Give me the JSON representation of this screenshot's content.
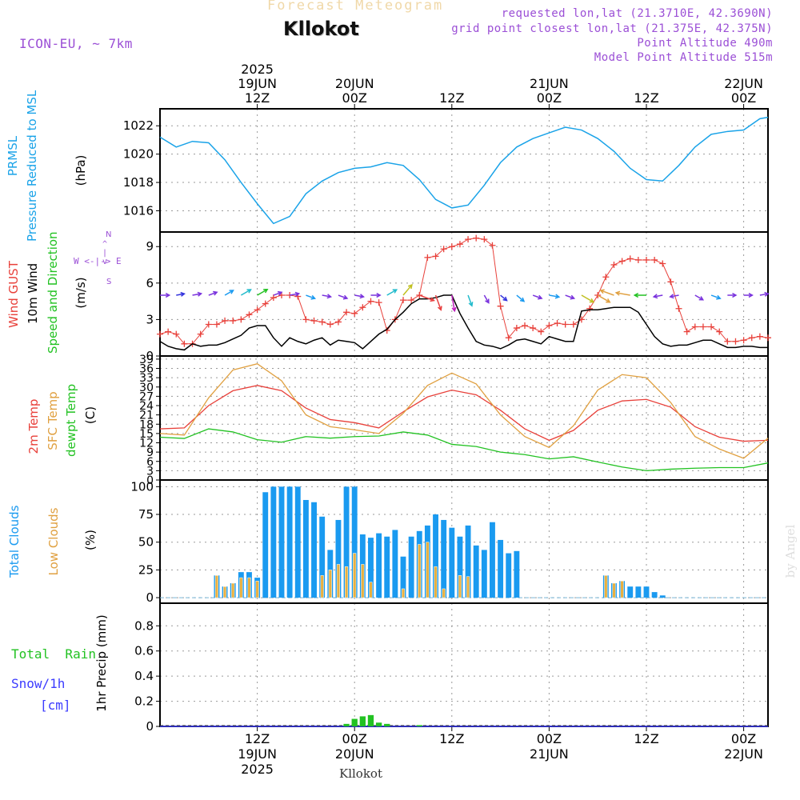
{
  "header": {
    "title_top": "Forecast Meteogram",
    "location": "Kllokot",
    "model": "ICON-EU, ~ 7km",
    "requested": "requested lon,lat (21.3710E, 42.3690N)",
    "gridpoint": "grid point closest lon,lat (21.375E, 42.375N)",
    "point_alt": "Point Altitude 490m",
    "model_alt": "Model Point Altitude 515m",
    "footer_location": "Kllokot",
    "watermark": "by Angel"
  },
  "time_axis": {
    "top_ticks": [
      {
        "t": 12,
        "l1": "2025",
        "l2": "19JUN",
        "l3": "12Z"
      },
      {
        "t": 24,
        "l1": "",
        "l2": "20JUN",
        "l3": "00Z"
      },
      {
        "t": 36,
        "l1": "",
        "l2": "",
        "l3": "12Z"
      },
      {
        "t": 48,
        "l1": "",
        "l2": "21JUN",
        "l3": "00Z"
      },
      {
        "t": 60,
        "l1": "",
        "l2": "",
        "l3": "12Z"
      },
      {
        "t": 72,
        "l1": "",
        "l2": "22JUN",
        "l3": "00Z"
      }
    ],
    "bottom_ticks": [
      {
        "t": 12,
        "l1": "12Z",
        "l2": "19JUN",
        "l3": "2025"
      },
      {
        "t": 24,
        "l1": "00Z",
        "l2": "20JUN",
        "l3": ""
      },
      {
        "t": 36,
        "l1": "12Z",
        "l2": "",
        "l3": ""
      },
      {
        "t": 48,
        "l1": "00Z",
        "l2": "21JUN",
        "l3": ""
      },
      {
        "t": 60,
        "l1": "12Z",
        "l2": "",
        "l3": ""
      },
      {
        "t": 72,
        "l1": "00Z",
        "l2": "22JUN",
        "l3": ""
      }
    ]
  },
  "labels": {
    "p1": {
      "a": "PRMSL",
      "b": "Pressure Reduced to MSL",
      "unit": "(hPa)"
    },
    "p2": {
      "a": "Wind GUST",
      "b": "10m Wind",
      "c": "Speed and Direction",
      "unit": "(m/s)",
      "compass_ns": "N",
      "compass_we": "W <-|-> E",
      "compass_s": "S"
    },
    "p3": {
      "a": "2m Temp",
      "b": "SFC Temp",
      "c": "dewpt Temp",
      "unit": "(C)"
    },
    "p4": {
      "a": "Total Clouds",
      "b": "Low Clouds",
      "unit": "(%)"
    },
    "p5": {
      "a": "Total  Rain",
      "b": "Snow/1h",
      "c": "[cm]",
      "unit": "1hr Precip (mm)"
    }
  },
  "colors": {
    "pressure": "#1aa3e8",
    "gust": "#e8403a",
    "wind": "#000000",
    "temp2m": "#e8403a",
    "sfc": "#e0a040",
    "dewpt": "#22c222",
    "cloud_total": "#1a9af0",
    "cloud_low": "#e8b040",
    "rain": "#22c222",
    "snow": "#3c3cff",
    "purple": "#9b4fd6"
  },
  "chart_data": [
    {
      "type": "line",
      "title": "PRMSL Pressure Reduced to MSL",
      "ylabel": "hPa",
      "ylim": [
        1014.5,
        1023.2
      ],
      "yticks": [
        1016,
        1018,
        1020,
        1022
      ],
      "x": [
        0,
        2,
        4,
        6,
        8,
        10,
        12,
        14,
        16,
        18,
        20,
        22,
        24,
        26,
        28,
        30,
        32,
        34,
        36,
        38,
        40,
        42,
        44,
        46,
        48,
        50,
        52,
        54,
        56,
        58,
        60,
        62,
        64,
        66,
        68,
        70,
        72,
        74,
        75
      ],
      "values": [
        1021.2,
        1020.5,
        1020.9,
        1020.8,
        1019.6,
        1018.0,
        1016.5,
        1015.1,
        1015.6,
        1017.2,
        1018.1,
        1018.7,
        1019.0,
        1019.1,
        1019.4,
        1019.2,
        1018.2,
        1016.8,
        1016.2,
        1016.4,
        1017.8,
        1019.4,
        1020.5,
        1021.1,
        1021.5,
        1021.9,
        1021.7,
        1021.1,
        1020.2,
        1019.0,
        1018.2,
        1018.1,
        1019.2,
        1020.5,
        1021.4,
        1021.6,
        1021.7,
        1022.5,
        1022.6
      ]
    },
    {
      "type": "line",
      "title": "Wind GUST / 10m Wind Speed and Direction",
      "ylabel": "m/s",
      "ylim": [
        0,
        10.2
      ],
      "yticks": [
        0,
        3,
        6,
        9
      ],
      "x": [
        0,
        1,
        2,
        3,
        4,
        5,
        6,
        7,
        8,
        9,
        10,
        11,
        12,
        13,
        14,
        15,
        16,
        17,
        18,
        19,
        20,
        21,
        22,
        23,
        24,
        25,
        26,
        27,
        28,
        29,
        30,
        31,
        32,
        33,
        34,
        35,
        36,
        37,
        38,
        39,
        40,
        41,
        42,
        43,
        44,
        45,
        46,
        47,
        48,
        49,
        50,
        51,
        52,
        53,
        54,
        55,
        56,
        57,
        58,
        59,
        60,
        61,
        62,
        63,
        64,
        65,
        66,
        67,
        68,
        69,
        70,
        71,
        72,
        73,
        74,
        75
      ],
      "series": [
        {
          "name": "Wind GUST",
          "values": [
            1.8,
            2.0,
            1.8,
            1.0,
            1.0,
            1.8,
            2.6,
            2.6,
            2.9,
            2.9,
            3.0,
            3.4,
            3.8,
            4.3,
            4.8,
            5.0,
            5.0,
            4.9,
            3.0,
            2.9,
            2.8,
            2.6,
            2.8,
            3.6,
            3.5,
            4.0,
            4.5,
            4.4,
            2.1,
            3.0,
            4.6,
            4.6,
            5.0,
            8.1,
            8.2,
            8.8,
            9.0,
            9.2,
            9.6,
            9.7,
            9.6,
            9.1,
            4.1,
            1.5,
            2.3,
            2.5,
            2.3,
            2.0,
            2.5,
            2.7,
            2.6,
            2.6,
            3.0,
            3.9,
            5.0,
            6.5,
            7.5,
            7.8,
            8.0,
            7.9,
            7.9,
            7.9,
            7.6,
            6.1,
            3.9,
            2.0,
            2.4,
            2.4,
            2.4,
            2.0,
            1.2,
            1.2,
            1.3,
            1.5,
            1.6,
            1.5
          ]
        },
        {
          "name": "10m Wind",
          "values": [
            1.2,
            0.8,
            0.6,
            0.5,
            1.0,
            0.8,
            0.9,
            0.9,
            1.1,
            1.4,
            1.7,
            2.3,
            2.5,
            2.5,
            1.5,
            0.8,
            1.5,
            1.2,
            1.0,
            1.3,
            1.5,
            0.9,
            1.3,
            1.2,
            1.1,
            0.6,
            1.2,
            1.8,
            2.2,
            3.0,
            3.6,
            4.3,
            4.7,
            4.7,
            4.8,
            5.0,
            5.0,
            3.5,
            2.3,
            1.2,
            0.9,
            0.8,
            0.6,
            0.9,
            1.3,
            1.4,
            1.2,
            1.0,
            1.6,
            1.4,
            1.2,
            1.2,
            3.7,
            3.8,
            3.8,
            3.9,
            4.0,
            4.0,
            4.0,
            3.6,
            2.6,
            1.6,
            1.0,
            0.8,
            0.9,
            0.9,
            1.1,
            1.3,
            1.3,
            1.0,
            0.7,
            0.7,
            0.8,
            0.8,
            0.7,
            0.7
          ]
        }
      ]
    },
    {
      "type": "line",
      "title": "2m Temp / SFC Temp / dewpt Temp",
      "ylabel": "C",
      "ylim": [
        0,
        40
      ],
      "yticks": [
        0,
        3,
        6,
        9,
        12,
        15,
        18,
        21,
        24,
        27,
        30,
        33,
        36,
        39
      ],
      "x": [
        0,
        3,
        6,
        9,
        12,
        15,
        18,
        21,
        24,
        27,
        30,
        33,
        36,
        39,
        42,
        45,
        48,
        51,
        54,
        57,
        60,
        63,
        66,
        69,
        72,
        75
      ],
      "series": [
        {
          "name": "2m Temp",
          "values": [
            16.5,
            16.8,
            24.0,
            28.8,
            30.5,
            28.8,
            23.2,
            19.5,
            18.5,
            16.8,
            22.0,
            26.8,
            29.0,
            27.5,
            22.5,
            16.5,
            12.8,
            16.0,
            22.5,
            25.5,
            26.0,
            23.5,
            17.2,
            13.8,
            12.5,
            12.8
          ]
        },
        {
          "name": "SFC Temp",
          "values": [
            15.0,
            14.5,
            26.5,
            35.5,
            37.5,
            32.0,
            21.0,
            17.2,
            16.2,
            15.0,
            21.5,
            30.5,
            34.5,
            31.0,
            21.0,
            14.0,
            10.5,
            17.5,
            29.0,
            34.0,
            33.0,
            25.0,
            14.0,
            10.0,
            7.0,
            13.5
          ]
        },
        {
          "name": "dewpt Temp",
          "values": [
            13.8,
            13.4,
            16.5,
            15.5,
            13.0,
            12.2,
            14.0,
            13.5,
            14.0,
            14.2,
            15.5,
            14.5,
            11.5,
            10.8,
            9.0,
            8.2,
            6.8,
            7.5,
            5.8,
            4.2,
            3.0,
            3.5,
            3.8,
            4.0,
            4.0,
            5.5
          ]
        }
      ]
    },
    {
      "type": "bar",
      "title": "Total Clouds / Low Clouds",
      "ylabel": "%",
      "ylim": [
        -5,
        106
      ],
      "yticks": [
        0,
        25,
        50,
        75,
        100
      ],
      "x": [
        7,
        8,
        9,
        10,
        11,
        12,
        13,
        14,
        15,
        16,
        17,
        18,
        19,
        20,
        21,
        22,
        23,
        24,
        25,
        26,
        27,
        28,
        29,
        30,
        31,
        32,
        33,
        34,
        35,
        36,
        37,
        38,
        39,
        40,
        41,
        42,
        43,
        44,
        45,
        55,
        56,
        57,
        58,
        59,
        60,
        61,
        62
      ],
      "series": [
        {
          "name": "Total Clouds",
          "values": [
            20,
            10,
            13,
            23,
            23,
            18,
            95,
            100,
            100,
            100,
            100,
            88,
            86,
            73,
            43,
            70,
            100,
            100,
            57,
            54,
            58,
            55,
            61,
            37,
            55,
            60,
            65,
            75,
            70,
            63,
            55,
            65,
            47,
            43,
            68,
            52,
            40,
            42,
            0,
            20,
            13,
            15,
            10,
            10,
            10,
            5,
            2
          ]
        },
        {
          "name": "Low Clouds",
          "values": [
            20,
            10,
            13,
            18,
            18,
            15,
            0,
            0,
            0,
            0,
            0,
            0,
            0,
            20,
            25,
            30,
            28,
            40,
            30,
            14,
            0,
            0,
            0,
            8,
            0,
            48,
            50,
            28,
            8,
            0,
            20,
            19,
            0,
            0,
            0,
            0,
            0,
            0,
            0,
            20,
            13,
            15,
            0,
            0,
            0,
            0,
            0
          ]
        }
      ]
    },
    {
      "type": "bar",
      "title": "1hr Precip",
      "ylabel": "1hr Precip (mm)",
      "ylim": [
        0,
        0.98
      ],
      "yticks": [
        0,
        0.2,
        0.4,
        0.6,
        0.8
      ],
      "x": [
        19,
        20,
        21,
        22,
        23,
        24,
        25,
        26,
        27,
        28,
        29,
        30,
        31,
        32,
        33,
        34,
        35,
        36,
        37,
        38,
        39,
        40
      ],
      "series": [
        {
          "name": "Total Rain",
          "values": [
            0,
            0,
            0,
            0,
            0.02,
            0.06,
            0.08,
            0.09,
            0.03,
            0.02,
            0,
            0,
            0,
            0.01,
            0,
            0,
            0,
            0,
            0,
            0,
            0,
            0
          ]
        }
      ]
    }
  ],
  "wind_arrows": {
    "x": [
      0,
      2,
      4,
      6,
      8,
      10,
      12,
      14,
      16,
      18,
      20,
      22,
      24,
      26,
      28,
      30,
      32,
      34,
      36,
      38,
      40,
      42,
      44,
      46,
      48,
      50,
      52,
      54,
      56,
      58,
      60,
      62,
      64,
      66,
      68,
      70,
      72,
      74
    ],
    "dir_to": [
      90,
      80,
      80,
      70,
      60,
      60,
      60,
      70,
      80,
      110,
      100,
      110,
      100,
      90,
      60,
      40,
      110,
      160,
      170,
      160,
      150,
      130,
      130,
      110,
      100,
      110,
      120,
      120,
      290,
      280,
      270,
      260,
      260,
      120,
      110,
      90,
      90,
      80
    ],
    "speed": [
      1.2,
      0.6,
      1.0,
      0.9,
      1.4,
      2.3,
      2.5,
      0.8,
      1.2,
      1.3,
      0.9,
      1.2,
      1.1,
      1.2,
      2.2,
      3.6,
      4.7,
      4.8,
      5.0,
      2.3,
      0.9,
      0.6,
      1.3,
      1.2,
      1.6,
      1.2,
      3.7,
      3.8,
      4.0,
      4.0,
      2.6,
      1.0,
      0.9,
      1.1,
      1.3,
      0.7,
      0.8,
      0.7
    ]
  }
}
